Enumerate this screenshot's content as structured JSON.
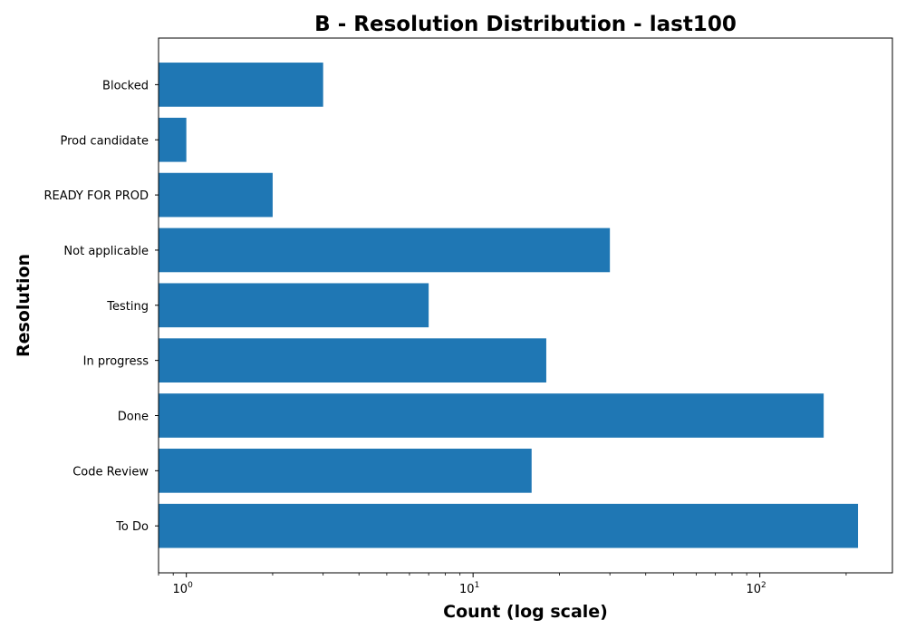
{
  "chart_data": {
    "type": "bar",
    "orientation": "horizontal",
    "title": "B - Resolution Distribution - last100",
    "xlabel": "Count (log scale)",
    "ylabel": "Resolution",
    "xscale": "log",
    "xlim": [
      0.8,
      290
    ],
    "xticks": [
      {
        "value": 1,
        "base": "10",
        "exp": "0"
      },
      {
        "value": 10,
        "base": "10",
        "exp": "1"
      },
      {
        "value": 100,
        "base": "10",
        "exp": "2"
      }
    ],
    "categories": [
      "To Do",
      "Code Review",
      "Done",
      "In progress",
      "Testing",
      "Not applicable",
      "READY FOR PROD",
      "Prod candidate",
      "Blocked"
    ],
    "values": [
      220,
      16,
      167,
      18,
      7,
      30,
      2,
      1,
      3
    ],
    "color": "#1f77b4",
    "grid": false,
    "legend": "none"
  }
}
